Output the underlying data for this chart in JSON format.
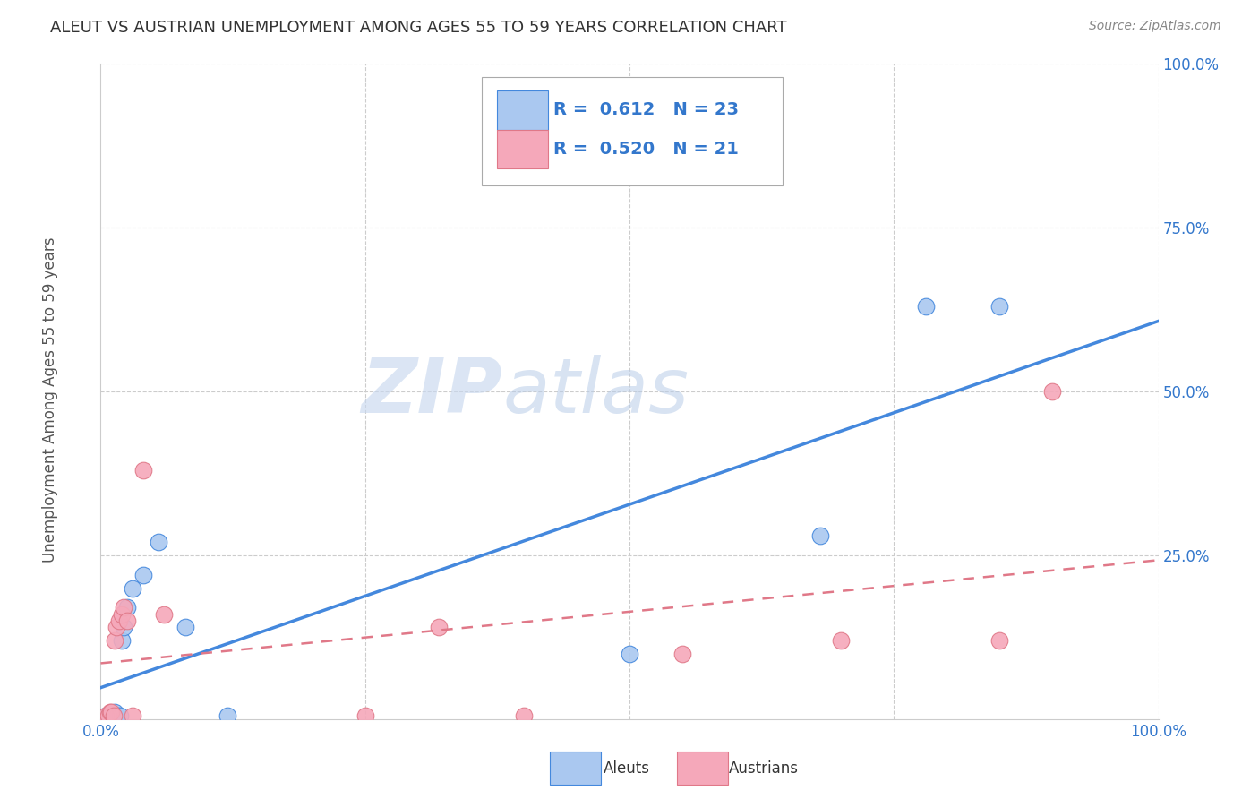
{
  "title": "ALEUT VS AUSTRIAN UNEMPLOYMENT AMONG AGES 55 TO 59 YEARS CORRELATION CHART",
  "source": "Source: ZipAtlas.com",
  "ylabel": "Unemployment Among Ages 55 to 59 years",
  "watermark_zip": "ZIP",
  "watermark_atlas": "atlas",
  "aleut_R": "0.612",
  "aleut_N": "23",
  "austrian_R": "0.520",
  "austrian_N": "21",
  "aleut_color": "#aac8f0",
  "austrian_color": "#f5a8ba",
  "aleut_line_color": "#4488dd",
  "austrian_line_color": "#e07888",
  "legend_color": "#3377cc",
  "title_color": "#333333",
  "source_color": "#888888",
  "ytick_color": "#3377cc",
  "grid_color": "#cccccc",
  "background_color": "#ffffff",
  "aleut_points": [
    [
      0.005,
      0.005
    ],
    [
      0.007,
      0.005
    ],
    [
      0.008,
      0.005
    ],
    [
      0.009,
      0.005
    ],
    [
      0.01,
      0.005
    ],
    [
      0.011,
      0.005
    ],
    [
      0.012,
      0.005
    ],
    [
      0.013,
      0.01
    ],
    [
      0.014,
      0.005
    ],
    [
      0.016,
      0.005
    ],
    [
      0.018,
      0.005
    ],
    [
      0.02,
      0.12
    ],
    [
      0.022,
      0.14
    ],
    [
      0.025,
      0.17
    ],
    [
      0.03,
      0.2
    ],
    [
      0.04,
      0.22
    ],
    [
      0.055,
      0.27
    ],
    [
      0.08,
      0.14
    ],
    [
      0.12,
      0.005
    ],
    [
      0.5,
      0.1
    ],
    [
      0.68,
      0.28
    ],
    [
      0.78,
      0.63
    ],
    [
      0.85,
      0.63
    ]
  ],
  "austrian_points": [
    [
      0.005,
      0.005
    ],
    [
      0.007,
      0.005
    ],
    [
      0.009,
      0.01
    ],
    [
      0.01,
      0.01
    ],
    [
      0.012,
      0.005
    ],
    [
      0.013,
      0.12
    ],
    [
      0.015,
      0.14
    ],
    [
      0.017,
      0.15
    ],
    [
      0.02,
      0.16
    ],
    [
      0.022,
      0.17
    ],
    [
      0.025,
      0.15
    ],
    [
      0.03,
      0.005
    ],
    [
      0.04,
      0.38
    ],
    [
      0.06,
      0.16
    ],
    [
      0.25,
      0.005
    ],
    [
      0.32,
      0.14
    ],
    [
      0.4,
      0.005
    ],
    [
      0.55,
      0.1
    ],
    [
      0.7,
      0.12
    ],
    [
      0.85,
      0.12
    ],
    [
      0.9,
      0.5
    ]
  ]
}
